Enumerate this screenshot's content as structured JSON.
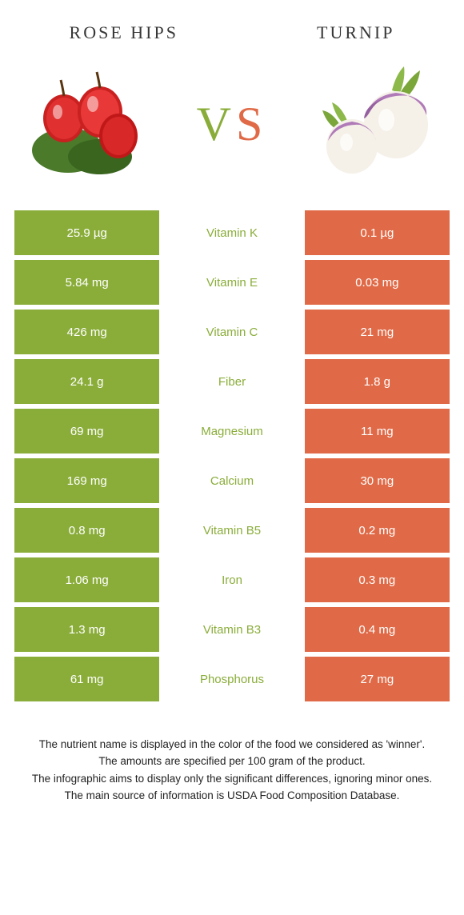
{
  "food_left": {
    "title": "Rose hips"
  },
  "food_right": {
    "title": "Turnip"
  },
  "vs": {
    "v": "V",
    "s": "S"
  },
  "colors": {
    "left_bg": "#8aad3a",
    "right_bg": "#e06a47",
    "left_text": "#8aad3a",
    "right_text": "#e06a47",
    "white": "#ffffff",
    "row_gap": 6
  },
  "nutrients": [
    {
      "name": "Vitamin K",
      "left": "25.9 µg",
      "right": "0.1 µg",
      "winner": "left"
    },
    {
      "name": "Vitamin E",
      "left": "5.84 mg",
      "right": "0.03 mg",
      "winner": "left"
    },
    {
      "name": "Vitamin C",
      "left": "426 mg",
      "right": "21 mg",
      "winner": "left"
    },
    {
      "name": "Fiber",
      "left": "24.1 g",
      "right": "1.8 g",
      "winner": "left"
    },
    {
      "name": "Magnesium",
      "left": "69 mg",
      "right": "11 mg",
      "winner": "left"
    },
    {
      "name": "Calcium",
      "left": "169 mg",
      "right": "30 mg",
      "winner": "left"
    },
    {
      "name": "Vitamin B5",
      "left": "0.8 mg",
      "right": "0.2 mg",
      "winner": "left"
    },
    {
      "name": "Iron",
      "left": "1.06 mg",
      "right": "0.3 mg",
      "winner": "left"
    },
    {
      "name": "Vitamin B3",
      "left": "1.3 mg",
      "right": "0.4 mg",
      "winner": "left"
    },
    {
      "name": "Phosphorus",
      "left": "61 mg",
      "right": "27 mg",
      "winner": "left"
    }
  ],
  "footnotes": [
    "The nutrient name is displayed in the color of the food we considered as 'winner'.",
    "The amounts are specified per 100 gram of the product.",
    "The infographic aims to display only the significant differences, ignoring minor ones.",
    "The main source of information is USDA Food Composition Database."
  ]
}
